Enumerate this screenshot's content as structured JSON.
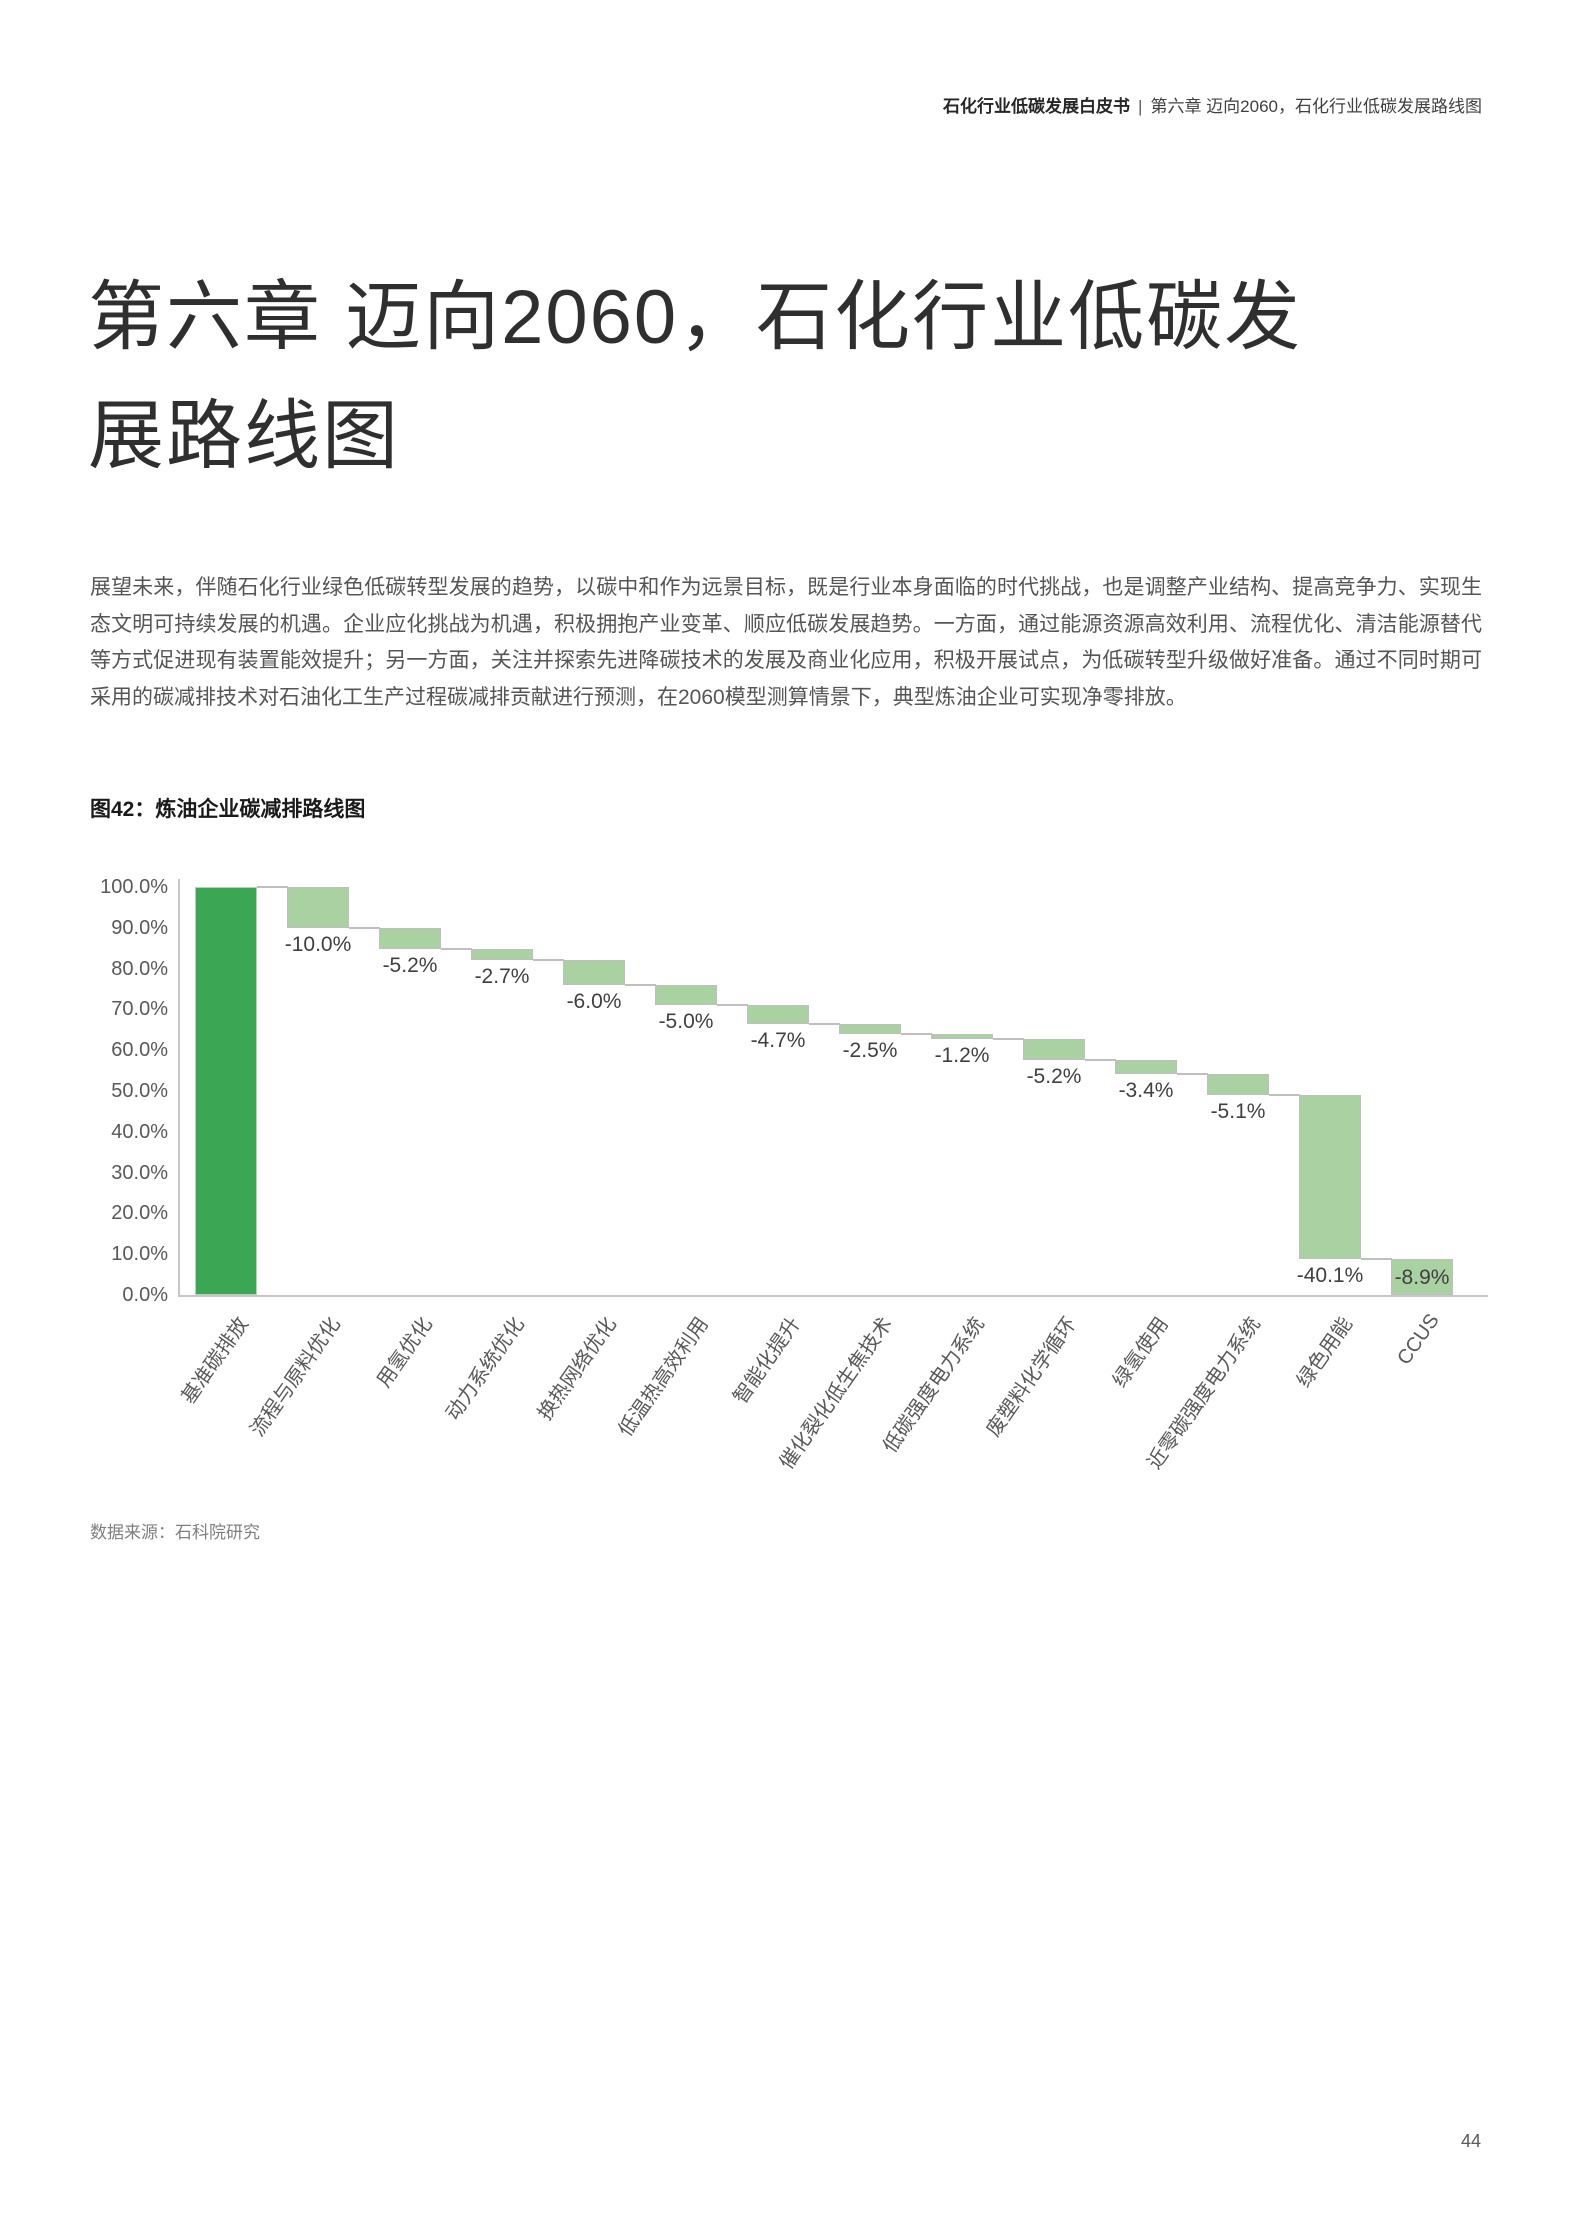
{
  "header": {
    "book_title": "石化行业低碳发展白皮书",
    "separator": "|",
    "chapter_crumb": "第六章 迈向2060，石化行业低碳发展路线图"
  },
  "hero": {
    "lines": [
      "第六章 迈向2060，石化行业低碳发",
      "展路线图"
    ]
  },
  "body_text": "展望未来，伴随石化行业绿色低碳转型发展的趋势，以碳中和作为远景目标，既是行业本身面临的时代挑战，也是调整产业结构、提高竞争力、实现生态文明可持续发展的机遇。企业应化挑战为机遇，积极拥抱产业变革、顺应低碳发展趋势。一方面，通过能源资源高效利用、流程优化、清洁能源替代等方式促进现有装置能效提升；另一方面，关注并探索先进降碳技术的发展及商业化应用，积极开展试点，为低碳转型升级做好准备。通过不同时期可采用的碳减排技术对石油化工生产过程碳减排贡献进行预测，在2060模型测算情景下，典型炼油企业可实现净零排放。",
  "figure": {
    "caption": "图42：炼油企业碳减排路线图"
  },
  "chart_data": {
    "type": "bar",
    "subtype": "waterfall",
    "title": "炼油企业碳减排路线图",
    "categories": [
      "基准碳排放",
      "流程与原料优化",
      "用氢优化",
      "动力系统优化",
      "换热网络优化",
      "低温热高效利用",
      "智能化提升",
      "催化裂化低生焦技术",
      "低碳强度电力系统",
      "废塑料化学循环",
      "绿氢使用",
      "近零碳强度电力系统",
      "绿色用能",
      "CCUS"
    ],
    "values": [
      100.0,
      -10.0,
      -5.2,
      -2.7,
      -6.0,
      -5.0,
      -4.7,
      -2.5,
      -1.2,
      -5.2,
      -3.4,
      -5.1,
      -40.1,
      -8.9
    ],
    "bar_labels": [
      "",
      "-10.0%",
      "-5.2%",
      "-2.7%",
      "-6.0%",
      "-5.0%",
      "-4.7%",
      "-2.5%",
      "-1.2%",
      "-5.2%",
      "-3.4%",
      "-5.1%",
      "-40.1%",
      "-8.9%"
    ],
    "y_ticks": [
      "100.0%",
      "90.0%",
      "80.0%",
      "70.0%",
      "60.0%",
      "50.0%",
      "40.0%",
      "30.0%",
      "20.0%",
      "10.0%",
      "0.0%"
    ],
    "ylim": [
      0,
      100
    ],
    "grid": false,
    "legend": "none",
    "colors": {
      "base_bar": "#3ba653",
      "step_bar": "#a9d1a1",
      "connector": "#bfbfbf",
      "axis": "#c6c6c6"
    }
  },
  "source_note": "数据来源：石科院研究",
  "page_number": "44"
}
